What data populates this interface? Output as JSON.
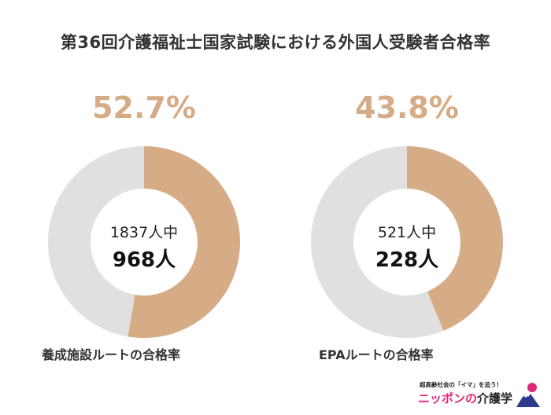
{
  "title": "第36回介護福祉士国家試験における外国人受験者合格率",
  "colors": {
    "pass": "#D6AC86",
    "fail": "#E0E0E0",
    "text": "#333333"
  },
  "chart_data": [
    {
      "type": "pie",
      "variant": "donut",
      "percent_label": "52.7%",
      "values": [
        52.7,
        47.3
      ],
      "center_total": "1837人中",
      "center_pass": "968人",
      "caption": "養成施設ルートの合格率"
    },
    {
      "type": "pie",
      "variant": "donut",
      "percent_label": "43.8%",
      "values": [
        43.8,
        56.2
      ],
      "center_total": "521人中",
      "center_pass": "228人",
      "caption": "EPAルートの合格率"
    }
  ],
  "brand": {
    "tagline": "超高齢社会の「イマ」を追う！",
    "name_pink": "ニッポンの",
    "name_dark": "介護学"
  }
}
